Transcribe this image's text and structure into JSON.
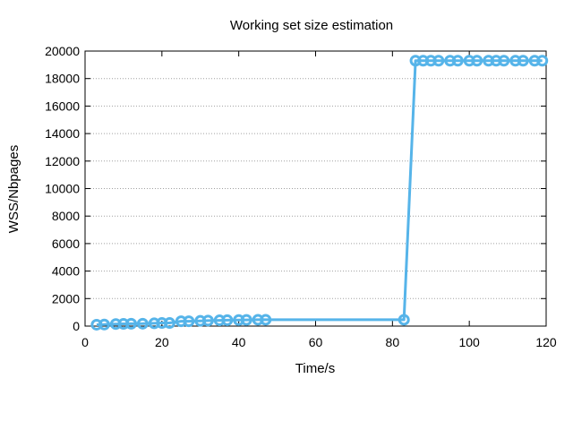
{
  "chart_data": {
    "type": "line",
    "title": "Working set size estimation",
    "xlabel": "Time/s",
    "ylabel": "WSS/Nbpages",
    "xlim": [
      0,
      120
    ],
    "ylim": [
      0,
      20000
    ],
    "xticks": [
      0,
      20,
      40,
      60,
      80,
      100,
      120
    ],
    "yticks": [
      0,
      2000,
      4000,
      6000,
      8000,
      10000,
      12000,
      14000,
      16000,
      18000,
      20000
    ],
    "grid": true,
    "grid_axis": "y",
    "legend": false,
    "line_color": "#56b4e9",
    "series": [
      {
        "values_x": [
          3,
          5,
          8,
          10,
          12,
          15,
          18,
          20,
          22,
          25,
          27,
          30,
          32,
          35,
          37,
          40,
          42,
          45,
          47,
          83,
          86,
          88,
          90,
          92,
          95,
          97,
          100,
          102,
          105,
          107,
          109,
          112,
          114,
          117,
          119
        ],
        "values_y": [
          100,
          110,
          150,
          160,
          170,
          175,
          200,
          225,
          225,
          350,
          350,
          380,
          400,
          420,
          430,
          440,
          450,
          460,
          460,
          460,
          19300,
          19300,
          19300,
          19300,
          19300,
          19300,
          19300,
          19300,
          19300,
          19300,
          19300,
          19300,
          19300,
          19300,
          19300
        ]
      }
    ]
  }
}
